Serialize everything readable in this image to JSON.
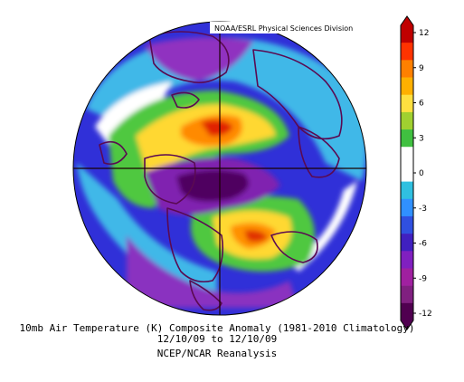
{
  "credit": "NOAA/ESRL Physical Sciences Division",
  "captions": {
    "line1": "10mb Air Temperature (K) Composite Anomaly (1981-2010 Climatology)",
    "line2": "12/10/09 to 12/10/09",
    "line3": "NCEP/NCAR Reanalysis"
  },
  "colorbar": {
    "ticks": [
      "12",
      "9",
      "6",
      "3",
      "0",
      "-3",
      "-6",
      "-9",
      "-12"
    ],
    "colors": [
      "#c00000",
      "#ff3300",
      "#ff8000",
      "#ffb000",
      "#ffe040",
      "#a0d030",
      "#40c040",
      "#ffffff",
      "#ffffff",
      "#30c0e0",
      "#3090ff",
      "#3050e0",
      "#4020c0",
      "#8020c0",
      "#a020a0",
      "#802080",
      "#500050"
    ]
  },
  "palette": {
    "land": "#5a0a52",
    "grid": "#1a0000",
    "bar_outline": "#000000"
  }
}
